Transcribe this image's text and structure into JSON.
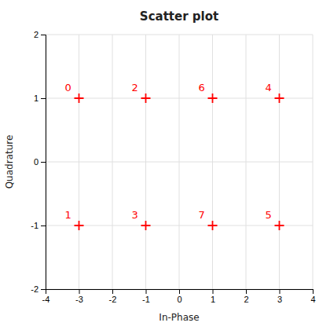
{
  "chart_data": {
    "type": "scatter",
    "title": "Scatter plot",
    "xlabel": "In-Phase",
    "ylabel": "Quadrature",
    "x": [
      -3,
      -3,
      -1,
      -1,
      1,
      1,
      3,
      3
    ],
    "values": [
      1,
      -1,
      1,
      -1,
      1,
      -1,
      1,
      -1
    ],
    "labels": [
      "0",
      "1",
      "2",
      "3",
      "6",
      "7",
      "4",
      "5"
    ],
    "color": "#ff0000",
    "marker": "plus",
    "xlim": [
      -4,
      4
    ],
    "ylim": [
      -2,
      2
    ],
    "xticks": [
      -4,
      -3,
      -2,
      -1,
      0,
      1,
      2,
      3,
      4
    ],
    "yticks": [
      -2,
      -1,
      0,
      1,
      2
    ],
    "grid": true
  }
}
